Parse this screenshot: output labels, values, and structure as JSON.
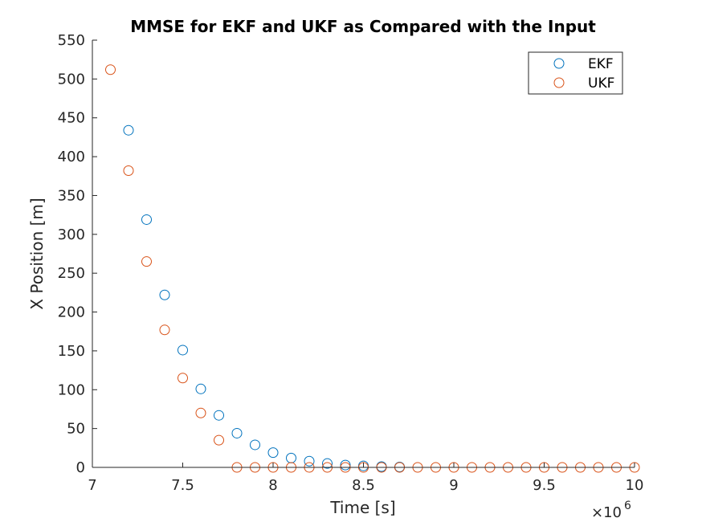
{
  "chart_data": {
    "type": "scatter",
    "title": "MMSE for EKF and UKF as Compared with the Input",
    "xlabel": "Time [s]",
    "ylabel": "X Position [m]",
    "x_exponent_base": "×10",
    "x_exponent_power": "6",
    "xlim": [
      7,
      10
    ],
    "ylim": [
      0,
      550
    ],
    "xticks": [
      7,
      7.5,
      8,
      8.5,
      9,
      9.5,
      10
    ],
    "xtick_labels": [
      "7",
      "7.5",
      "8",
      "8.5",
      "9",
      "9.5",
      "10"
    ],
    "yticks": [
      0,
      50,
      100,
      150,
      200,
      250,
      300,
      350,
      400,
      450,
      500,
      550
    ],
    "ytick_labels": [
      "0",
      "50",
      "100",
      "150",
      "200",
      "250",
      "300",
      "350",
      "400",
      "450",
      "500",
      "550"
    ],
    "grid": false,
    "legend_position": "top-right",
    "series": [
      {
        "name": "EKF",
        "color": "#0072BD",
        "marker": "circle",
        "x": [
          7.2,
          7.3,
          7.4,
          7.5,
          7.6,
          7.7,
          7.8,
          7.9,
          8.0,
          8.1,
          8.2,
          8.3,
          8.4,
          8.5,
          8.6,
          8.7
        ],
        "y": [
          434,
          319,
          222,
          151,
          101,
          67,
          44,
          29,
          19,
          12,
          8,
          5,
          3,
          2,
          1,
          0.5
        ]
      },
      {
        "name": "UKF",
        "color": "#D95319",
        "marker": "circle",
        "x": [
          7.1,
          7.2,
          7.3,
          7.4,
          7.5,
          7.6,
          7.7,
          7.8,
          7.9,
          8.0,
          8.1,
          8.2,
          8.3,
          8.4,
          8.5,
          8.6,
          8.7,
          8.8,
          8.9,
          9.0,
          9.1,
          9.2,
          9.3,
          9.4,
          9.5,
          9.6,
          9.7,
          9.8,
          9.9,
          10.0
        ],
        "y": [
          512,
          382,
          265,
          177,
          115,
          70,
          35,
          0,
          0,
          0,
          0,
          0,
          0,
          0,
          0,
          0,
          0,
          0,
          0,
          0,
          0,
          0,
          0,
          0,
          0,
          0,
          0,
          0,
          0,
          0
        ]
      }
    ]
  }
}
